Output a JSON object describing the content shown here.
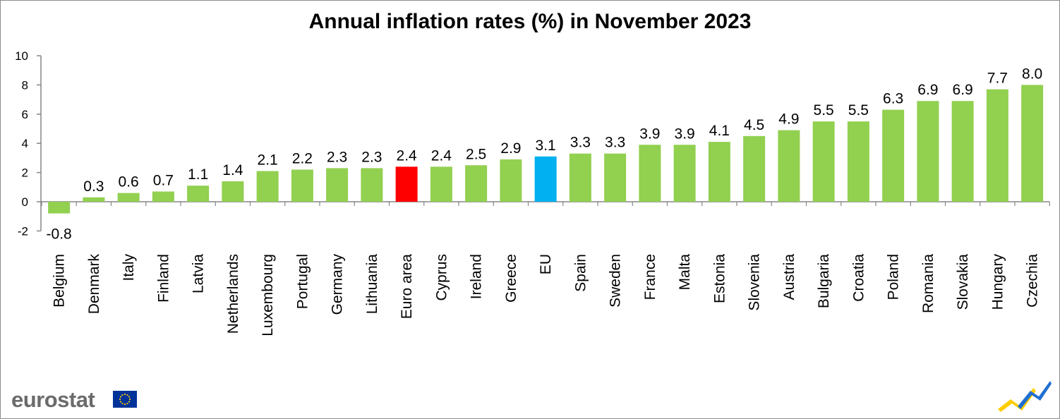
{
  "chart_data": {
    "type": "bar",
    "title": "Annual inflation rates (%) in November 2023",
    "xlabel": "",
    "ylabel": "",
    "ylim": [
      -2,
      10
    ],
    "yticks": [
      "-2",
      "0",
      "2",
      "4",
      "6",
      "8",
      "10"
    ],
    "grid": false,
    "categories": [
      "Belgium",
      "Denmark",
      "Italy",
      "Finland",
      "Latvia",
      "Netherlands",
      "Luxembourg",
      "Portugal",
      "Germany",
      "Lithuania",
      "Euro area",
      "Cyprus",
      "Ireland",
      "Greece",
      "EU",
      "Spain",
      "Sweden",
      "France",
      "Malta",
      "Estonia",
      "Slovenia",
      "Austria",
      "Bulgaria",
      "Croatia",
      "Poland",
      "Romania",
      "Slovakia",
      "Hungary",
      "Czechia"
    ],
    "values": [
      -0.8,
      0.3,
      0.6,
      0.7,
      1.1,
      1.4,
      2.1,
      2.2,
      2.3,
      2.3,
      2.4,
      2.4,
      2.5,
      2.9,
      3.1,
      3.3,
      3.3,
      3.9,
      3.9,
      4.1,
      4.5,
      4.9,
      5.5,
      5.5,
      6.3,
      6.9,
      6.9,
      7.7,
      8.0
    ],
    "labels": [
      "-0.8",
      "0.3",
      "0.6",
      "0.7",
      "1.1",
      "1.4",
      "2.1",
      "2.2",
      "2.3",
      "2.3",
      "2.4",
      "2.4",
      "2.5",
      "2.9",
      "3.1",
      "3.3",
      "3.3",
      "3.9",
      "3.9",
      "4.1",
      "4.5",
      "4.9",
      "5.5",
      "5.5",
      "6.3",
      "6.9",
      "6.9",
      "7.7",
      "8.0"
    ],
    "colors": {
      "default": "#92d050",
      "highlight": {
        "Euro area": "#ff0000",
        "EU": "#00b0f0"
      }
    }
  },
  "branding": {
    "logo_text": "eurostat",
    "flag_color": "#003399",
    "star_color": "#ffcc00"
  }
}
